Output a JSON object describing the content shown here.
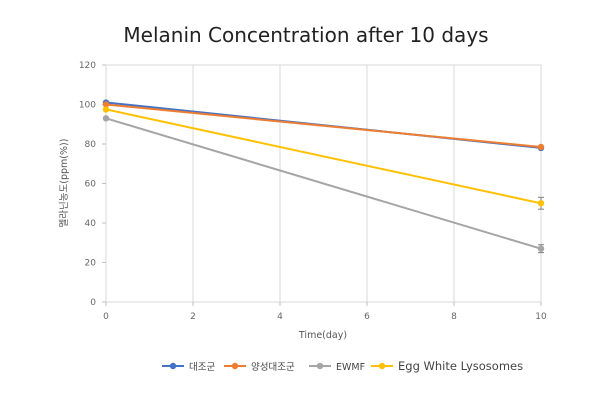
{
  "chart_data": {
    "type": "line",
    "title": "Melanin Concentration after 10 days",
    "xlabel": "Time(day)",
    "ylabel": "멜라닌농도(ppm(%))",
    "xlim": [
      0,
      10
    ],
    "ylim": [
      0,
      120
    ],
    "x_ticks": [
      "0",
      "2",
      "4",
      "6",
      "8",
      "10"
    ],
    "y_ticks": [
      "0",
      "20",
      "40",
      "60",
      "80",
      "100",
      "120"
    ],
    "grid": "vertical",
    "legend_position": "bottom",
    "x": [
      0,
      10
    ],
    "series": [
      {
        "name": "대조군",
        "values": [
          101,
          78
        ],
        "color": "#4472C4"
      },
      {
        "name": "양성대조군",
        "values": [
          100,
          78.5
        ],
        "color": "#ED7D31"
      },
      {
        "name": "EWMF",
        "values": [
          93,
          27
        ],
        "color": "#A5A5A5",
        "error": [
          0,
          2
        ]
      },
      {
        "name": "Egg White Lysosomes",
        "values": [
          97.5,
          50
        ],
        "color": "#FFC000",
        "error": [
          0,
          3
        ]
      }
    ]
  }
}
